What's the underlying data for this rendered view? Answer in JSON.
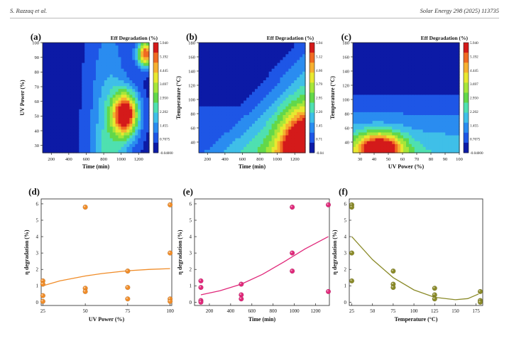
{
  "header": {
    "left": "S. Razzaq et al.",
    "right": "Solar Energy 298 (2025) 113735"
  },
  "colors": {
    "orange": "#F08C28",
    "magenta": "#E0287A",
    "olive": "#8A8A28"
  },
  "colormap": [
    "#0c1aa6",
    "#1e56e6",
    "#2a8cf0",
    "#3fbfe8",
    "#4fe0b0",
    "#62d84a",
    "#a6e63a",
    "#e8e830",
    "#f6b030",
    "#f06a22",
    "#d41a1a"
  ],
  "panels": [
    {
      "id": "a",
      "label": "(a)",
      "type": "contour",
      "xlabel": "Time (min)",
      "ylabel": "UV Power (%)",
      "xticks": [
        "200",
        "400",
        "600",
        "800",
        "1000",
        "1200"
      ],
      "xrange": [
        100,
        1320
      ],
      "yticks": [
        "30",
        "40",
        "50",
        "60",
        "70",
        "80",
        "90",
        "100"
      ],
      "yrange": [
        25,
        100
      ],
      "cb_title": "Eff Degradation (%)",
      "cb_labels": [
        "5.940",
        "5.192",
        "4.445",
        "3.697",
        "2.950",
        "2.202",
        "1.455",
        "0.7075",
        "-0.04000"
      ]
    },
    {
      "id": "b",
      "label": "(b)",
      "type": "contour",
      "xlabel": "Time (min)",
      "ylabel": "Temperature (°C)",
      "xticks": [
        "200",
        "400",
        "600",
        "800",
        "1000",
        "1200"
      ],
      "xrange": [
        100,
        1320
      ],
      "yticks": [
        "40",
        "60",
        "80",
        "100",
        "120",
        "140",
        "160",
        "180"
      ],
      "yrange": [
        25,
        180
      ],
      "cb_title": "Eff Degradation (%)",
      "cb_labels": [
        "5.94",
        "5.12",
        "4.66",
        "3.79",
        "2.95",
        "2.20",
        "1.45",
        "0.71",
        "-0.04"
      ]
    },
    {
      "id": "c",
      "label": "(c)",
      "type": "contour",
      "xlabel": "UV Power (%)",
      "ylabel": "Temperature (°C)",
      "xticks": [
        "30",
        "40",
        "50",
        "60",
        "70",
        "80",
        "90",
        "100"
      ],
      "xrange": [
        25,
        100
      ],
      "yticks": [
        "40",
        "60",
        "80",
        "100",
        "120",
        "140",
        "160",
        "180"
      ],
      "yrange": [
        25,
        180
      ],
      "cb_title": "Eff Degradation (%)",
      "cb_labels": [
        "5.940",
        "5.192",
        "4.445",
        "3.697",
        "2.950",
        "2.202",
        "1.455",
        "0.7075",
        "-0.04000"
      ]
    }
  ],
  "chart_data": [
    {
      "type": "scatter",
      "id": "d",
      "title": "(d)",
      "xlabel": "UV Power (%)",
      "ylabel": "η degradation (%)",
      "xticks": [
        25,
        50,
        75,
        100
      ],
      "xlim": [
        24,
        101
      ],
      "yticks": [
        0,
        1,
        2,
        3,
        4,
        5,
        6
      ],
      "ylim": [
        -0.2,
        6.3
      ],
      "color": "orange",
      "points": [
        [
          25,
          1.3
        ],
        [
          25,
          1.1
        ],
        [
          25,
          0.4
        ],
        [
          25,
          0.05
        ],
        [
          50,
          5.8
        ],
        [
          50,
          0.85
        ],
        [
          50,
          0.65
        ],
        [
          75,
          1.9
        ],
        [
          75,
          0.9
        ],
        [
          75,
          0.2
        ],
        [
          100,
          5.94
        ],
        [
          100,
          3.0
        ],
        [
          100,
          0.2
        ],
        [
          100,
          0.05
        ]
      ],
      "fit": [
        [
          25,
          1.0
        ],
        [
          35,
          1.3
        ],
        [
          50,
          1.6
        ],
        [
          60,
          1.75
        ],
        [
          75,
          1.92
        ],
        [
          88,
          2.0
        ],
        [
          100,
          2.05
        ]
      ]
    },
    {
      "type": "scatter",
      "id": "e",
      "title": "(e)",
      "xlabel": "Time (min)",
      "ylabel": "η degradation (%)",
      "xticks": [
        200,
        400,
        600,
        800,
        1000,
        1200
      ],
      "xlim": [
        60,
        1330
      ],
      "yticks": [
        0,
        1,
        2,
        3,
        4,
        5,
        6
      ],
      "ylim": [
        -0.2,
        6.3
      ],
      "color": "magenta",
      "points": [
        [
          120,
          1.3
        ],
        [
          120,
          0.9
        ],
        [
          120,
          0.1
        ],
        [
          120,
          0.0
        ],
        [
          500,
          1.1
        ],
        [
          500,
          0.45
        ],
        [
          500,
          0.2
        ],
        [
          980,
          5.8
        ],
        [
          980,
          3.0
        ],
        [
          980,
          1.9
        ],
        [
          1320,
          5.94
        ],
        [
          1320,
          0.65
        ]
      ],
      "fit": [
        [
          120,
          0.45
        ],
        [
          300,
          0.7
        ],
        [
          500,
          1.1
        ],
        [
          700,
          1.7
        ],
        [
          900,
          2.45
        ],
        [
          1100,
          3.25
        ],
        [
          1320,
          4.0
        ]
      ]
    },
    {
      "type": "scatter",
      "id": "f",
      "title": "(f)",
      "xlabel": "Temperature (°C)",
      "ylabel": "η degradation (%)",
      "xticks": [
        25,
        50,
        75,
        100,
        125,
        150,
        175
      ],
      "xlim": [
        22,
        183
      ],
      "yticks": [
        0,
        1,
        2,
        3,
        4,
        5,
        6
      ],
      "ylim": [
        -0.2,
        6.3
      ],
      "color": "olive",
      "points": [
        [
          25,
          5.94
        ],
        [
          25,
          5.8
        ],
        [
          25,
          3.0
        ],
        [
          25,
          1.3
        ],
        [
          75,
          1.9
        ],
        [
          75,
          1.1
        ],
        [
          75,
          0.9
        ],
        [
          125,
          0.85
        ],
        [
          125,
          0.45
        ],
        [
          125,
          0.2
        ],
        [
          180,
          0.65
        ],
        [
          180,
          0.1
        ],
        [
          180,
          0.0
        ]
      ],
      "fit": [
        [
          25,
          4.0
        ],
        [
          50,
          2.6
        ],
        [
          75,
          1.5
        ],
        [
          100,
          0.75
        ],
        [
          125,
          0.3
        ],
        [
          150,
          0.15
        ],
        [
          165,
          0.22
        ],
        [
          178,
          0.5
        ]
      ]
    }
  ]
}
